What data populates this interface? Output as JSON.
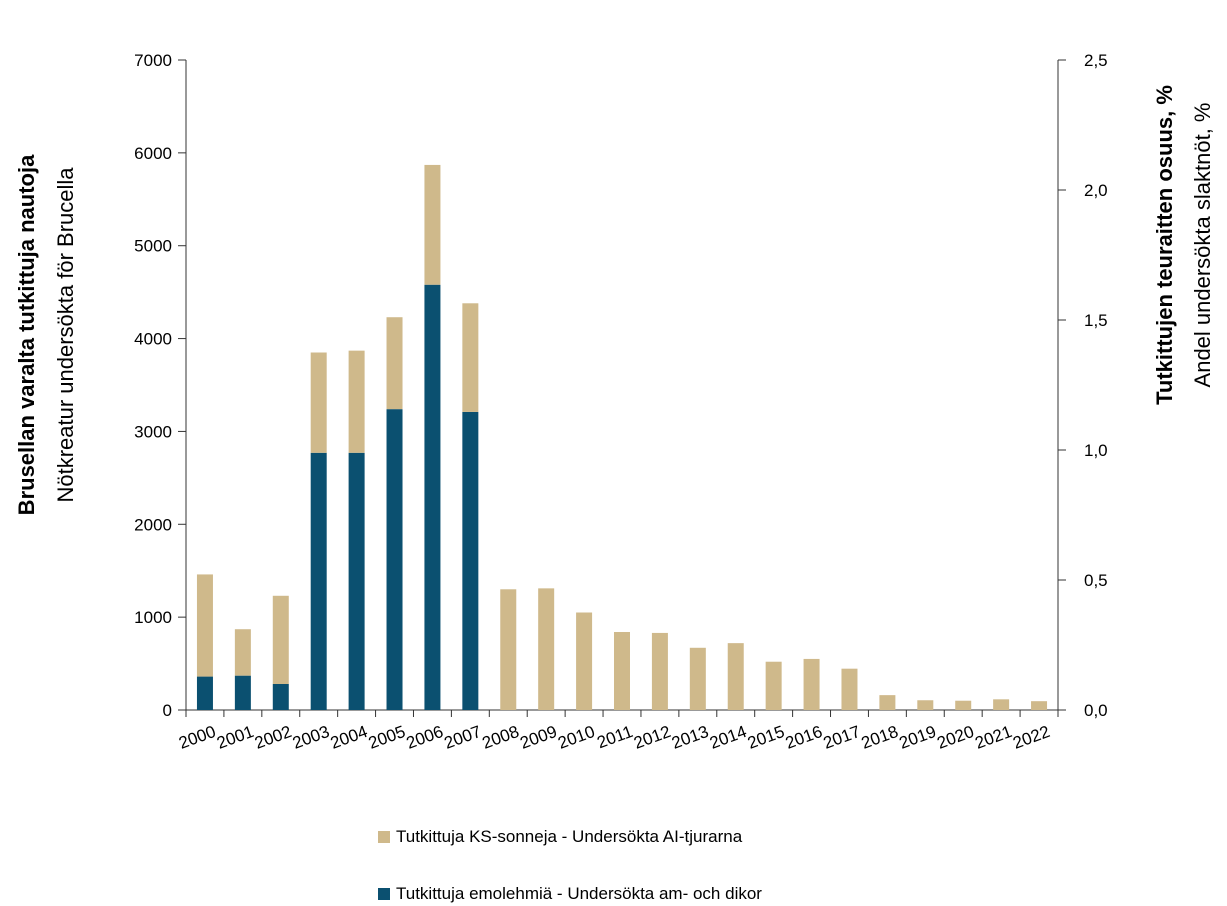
{
  "chart_data": {
    "type": "bar",
    "stacked": true,
    "categories": [
      "2000",
      "2001",
      "2002",
      "2003",
      "2004",
      "2005",
      "2006",
      "2007",
      "2008",
      "2009",
      "2010",
      "2011",
      "2012",
      "2013",
      "2014",
      "2015",
      "2016",
      "2017",
      "2018",
      "2019",
      "2020",
      "2021",
      "2022"
    ],
    "series": [
      {
        "name": "Tutkittuja emolehmiä - Undersökta am- och dikor",
        "color": "#0b5070",
        "values": [
          360,
          370,
          280,
          2770,
          2770,
          3240,
          4580,
          3210,
          0,
          0,
          0,
          0,
          0,
          0,
          0,
          0,
          0,
          0,
          0,
          0,
          0,
          0,
          0
        ]
      },
      {
        "name": "Tutkittuja KS-sonneja - Undersökta AI-tjurarna",
        "color": "#cfb98b",
        "values": [
          1100,
          500,
          950,
          1080,
          1100,
          990,
          1290,
          1170,
          1300,
          1310,
          1050,
          840,
          830,
          670,
          720,
          520,
          550,
          445,
          160,
          105,
          100,
          115,
          95
        ]
      }
    ],
    "y_left": {
      "title_bold": "Brusellan varalta tutkittuja nautoja",
      "title_normal": "Nötkreatur undersökta för Brucella",
      "ylim": [
        0,
        7000
      ],
      "ticks": [
        "0",
        "1000",
        "2000",
        "3000",
        "4000",
        "5000",
        "6000",
        "7000"
      ]
    },
    "y_right": {
      "title_bold": "Tutkittujen teuraitten osuus, %",
      "title_normal": "Andel undersökta slaktnöt, %",
      "ylim": [
        0,
        2.5
      ],
      "ticks": [
        "0,0",
        "0,5",
        "1,0",
        "1,5",
        "2,0",
        "2,5"
      ]
    },
    "legend": [
      {
        "label": "Tutkittuja KS-sonneja - Undersökta AI-tjurarna",
        "color": "#cfb98b"
      },
      {
        "label": "Tutkittuja emolehmiä - Undersökta am- och dikor",
        "color": "#0b5070"
      }
    ],
    "legend_position": "bottom",
    "grid": false
  }
}
